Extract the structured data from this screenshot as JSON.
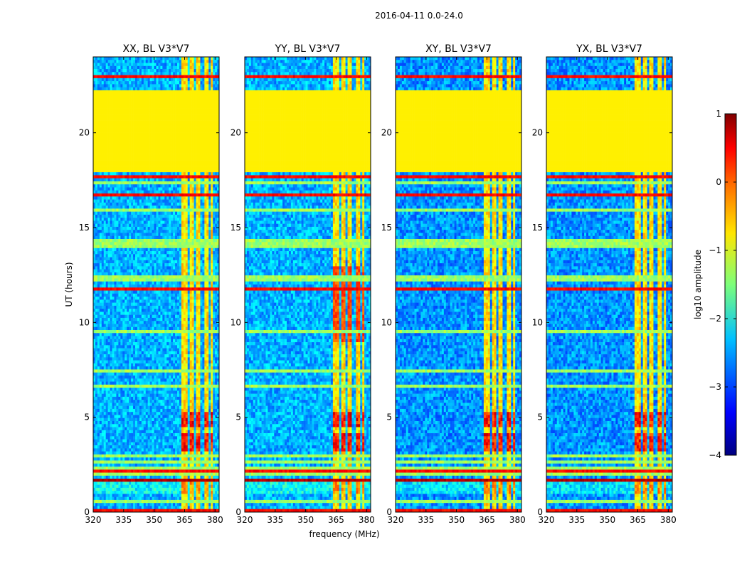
{
  "chart_data": {
    "type": "heatmap",
    "suptitle": "2016-04-11 0.0-24.0",
    "xlabel": "frequency (MHz)",
    "ylabel": "UT (hours)",
    "xlim": [
      320,
      382
    ],
    "ylim": [
      0,
      24
    ],
    "x_ticks": [
      320,
      335,
      350,
      365,
      380
    ],
    "y_ticks": [
      0,
      5,
      10,
      15,
      20
    ],
    "panels": [
      {
        "title": "XX, BL V3*V7",
        "polarization": "XX"
      },
      {
        "title": "YY, BL V3*V7",
        "polarization": "YY"
      },
      {
        "title": "XY, BL V3*V7",
        "polarization": "XY"
      },
      {
        "title": "YX, BL V3*V7",
        "polarization": "YX"
      }
    ],
    "colorbar": {
      "label": "log10 amplitude",
      "range": [
        -4,
        1
      ],
      "ticks": [
        1,
        0,
        -1,
        -2,
        -3,
        -4
      ],
      "colormap": "jet"
    },
    "flagged_region": {
      "ut_start": 18.0,
      "ut_end": 22.3,
      "value": -0.8
    },
    "rfi_bands_mhz": [
      [
        363,
        366
      ],
      [
        367.5,
        370
      ],
      [
        371,
        373
      ],
      [
        375,
        376.5
      ],
      [
        377.5,
        379
      ]
    ],
    "strong_rfi_ut": [
      [
        3.2,
        4.1
      ],
      [
        4.4,
        5.2
      ]
    ]
  }
}
